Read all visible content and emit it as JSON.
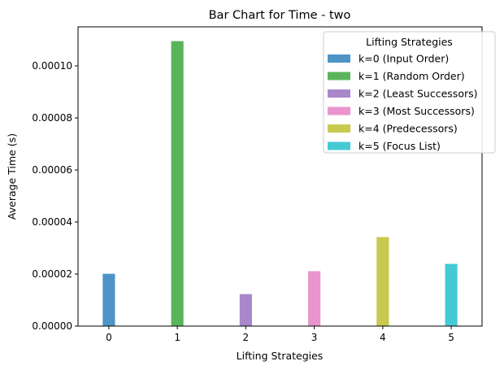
{
  "chart_data": {
    "type": "bar",
    "title": "Bar Chart for Time - two",
    "xlabel": "Lifting Strategies",
    "ylabel": "Average Time (s)",
    "categories": [
      "0",
      "1",
      "2",
      "3",
      "4",
      "5"
    ],
    "ylim": [
      0,
      0.000115
    ],
    "yticks": [
      "0.00000",
      "0.00002",
      "0.00004",
      "0.00006",
      "0.00008",
      "0.00010"
    ],
    "ytick_values": [
      0,
      2e-05,
      4e-05,
      6e-05,
      8e-05,
      0.0001
    ],
    "grid": false,
    "series": [
      {
        "name": "k=0 (Input Order)",
        "x": 0,
        "value": 2.01e-05,
        "color": "#4e94c6"
      },
      {
        "name": "k=1 (Random Order)",
        "x": 1,
        "value": 0.0001095,
        "color": "#5ab55a"
      },
      {
        "name": "k=2 (Least Successors)",
        "x": 2,
        "value": 1.23e-05,
        "color": "#a987cb"
      },
      {
        "name": "k=3 (Most Successors)",
        "x": 3,
        "value": 2.11e-05,
        "color": "#e994cf"
      },
      {
        "name": "k=4 (Predecessors)",
        "x": 4,
        "value": 3.42e-05,
        "color": "#c8c94e"
      },
      {
        "name": "k=5 (Focus List)",
        "x": 5,
        "value": 2.39e-05,
        "color": "#44c9d6"
      }
    ],
    "legend": {
      "title": "Lifting Strategies",
      "placement": "top-right"
    }
  }
}
